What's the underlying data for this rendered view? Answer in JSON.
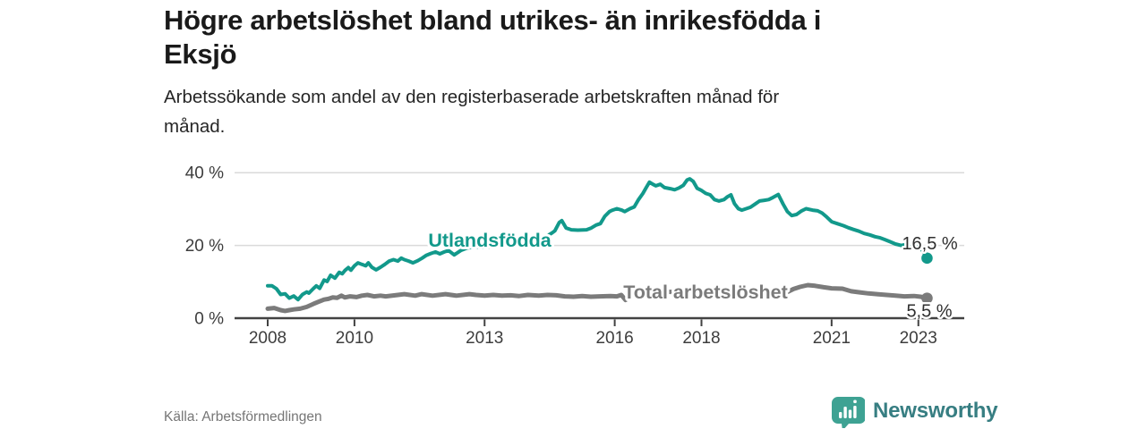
{
  "header": {
    "title_lines": [
      "Högre arbetslöshet bland utrikes- än inrikesfödda i",
      "Eksjö"
    ],
    "subtitle_lines": [
      "Arbetssökande som andel av den registerbaserade arbetskraften månad för",
      "månad."
    ]
  },
  "footer": {
    "source": "Källa: Arbetsförmedlingen",
    "brand_name": "Newsworthy"
  },
  "colors": {
    "title": "#1a1a1a",
    "subtitle": "#262626",
    "source": "#767676",
    "grid": "#dadada",
    "axis": "#424242",
    "tick_text": "#3d3d3d",
    "end_label_text": "#2f2f2f",
    "brand_icon": "#3EA293",
    "brand_text": "#377E82"
  },
  "chart_data": {
    "type": "line",
    "title": "Högre arbetslöshet bland utrikes- än inrikesfödda i Eksjö",
    "subtitle": "Arbetssökande som andel av den registerbaserade arbetskraften månad för månad.",
    "xlabel": "",
    "ylabel": "",
    "x_ticks": [
      2008,
      2010,
      2013,
      2016,
      2018,
      2021,
      2023
    ],
    "y_ticks": [
      0,
      20,
      40
    ],
    "y_tick_suffix": " %",
    "x_range": [
      2008,
      2023.45
    ],
    "y_range": [
      0,
      40
    ],
    "grid": "horizontal",
    "legend_position": "inline-labels",
    "series": [
      {
        "name": "Utlandsfödda",
        "color": "#12998B",
        "end_value_label": "16,5 %",
        "last_value": 16.5,
        "points": [
          [
            2008.0,
            8.9
          ],
          [
            2008.1,
            8.9
          ],
          [
            2008.2,
            8.1
          ],
          [
            2008.3,
            6.5
          ],
          [
            2008.4,
            6.7
          ],
          [
            2008.5,
            5.5
          ],
          [
            2008.6,
            6.1
          ],
          [
            2008.7,
            5.1
          ],
          [
            2008.8,
            6.5
          ],
          [
            2008.9,
            7.2
          ],
          [
            2008.95,
            6.9
          ],
          [
            2009.05,
            8.1
          ],
          [
            2009.12,
            8.9
          ],
          [
            2009.2,
            8.2
          ],
          [
            2009.3,
            10.5
          ],
          [
            2009.37,
            10.1
          ],
          [
            2009.45,
            11.8
          ],
          [
            2009.55,
            11.0
          ],
          [
            2009.65,
            12.6
          ],
          [
            2009.72,
            12.2
          ],
          [
            2009.78,
            13.1
          ],
          [
            2009.86,
            13.9
          ],
          [
            2009.92,
            13.2
          ],
          [
            2010.0,
            14.4
          ],
          [
            2010.08,
            15.2
          ],
          [
            2010.17,
            14.8
          ],
          [
            2010.26,
            14.4
          ],
          [
            2010.32,
            15.2
          ],
          [
            2010.4,
            14.0
          ],
          [
            2010.5,
            13.3
          ],
          [
            2010.6,
            14.0
          ],
          [
            2010.7,
            14.8
          ],
          [
            2010.8,
            15.7
          ],
          [
            2010.9,
            16.1
          ],
          [
            2011.0,
            15.7
          ],
          [
            2011.08,
            16.5
          ],
          [
            2011.15,
            16.1
          ],
          [
            2011.25,
            15.7
          ],
          [
            2011.35,
            15.2
          ],
          [
            2011.46,
            15.8
          ],
          [
            2011.56,
            16.5
          ],
          [
            2011.66,
            17.3
          ],
          [
            2011.76,
            17.8
          ],
          [
            2011.87,
            18.2
          ],
          [
            2011.97,
            17.7
          ],
          [
            2012.07,
            18.2
          ],
          [
            2012.17,
            18.6
          ],
          [
            2012.3,
            17.4
          ],
          [
            2012.45,
            18.6
          ],
          [
            2012.6,
            19.3
          ],
          [
            2012.8,
            19.6
          ],
          [
            2013.0,
            19.4
          ],
          [
            2013.2,
            19.8
          ],
          [
            2013.45,
            20.1
          ],
          [
            2013.7,
            20.0
          ],
          [
            2013.95,
            20.4
          ],
          [
            2014.2,
            21.2
          ],
          [
            2014.4,
            22.3
          ],
          [
            2014.55,
            23.4
          ],
          [
            2014.62,
            24.0
          ],
          [
            2014.72,
            26.3
          ],
          [
            2014.78,
            26.8
          ],
          [
            2014.88,
            24.8
          ],
          [
            2015.0,
            24.3
          ],
          [
            2015.15,
            24.2
          ],
          [
            2015.35,
            24.3
          ],
          [
            2015.46,
            24.8
          ],
          [
            2015.57,
            25.6
          ],
          [
            2015.67,
            26.0
          ],
          [
            2015.77,
            28.0
          ],
          [
            2015.88,
            29.3
          ],
          [
            2015.95,
            29.7
          ],
          [
            2016.05,
            30.1
          ],
          [
            2016.16,
            29.7
          ],
          [
            2016.23,
            29.3
          ],
          [
            2016.35,
            30.1
          ],
          [
            2016.45,
            30.6
          ],
          [
            2016.55,
            32.6
          ],
          [
            2016.65,
            34.3
          ],
          [
            2016.73,
            36.0
          ],
          [
            2016.8,
            37.4
          ],
          [
            2016.88,
            36.8
          ],
          [
            2016.95,
            36.4
          ],
          [
            2017.05,
            36.8
          ],
          [
            2017.15,
            35.9
          ],
          [
            2017.28,
            35.6
          ],
          [
            2017.38,
            35.3
          ],
          [
            2017.48,
            35.8
          ],
          [
            2017.58,
            36.5
          ],
          [
            2017.67,
            38.0
          ],
          [
            2017.73,
            38.3
          ],
          [
            2017.81,
            37.6
          ],
          [
            2017.9,
            35.7
          ],
          [
            2018.0,
            35.1
          ],
          [
            2018.1,
            34.3
          ],
          [
            2018.2,
            33.9
          ],
          [
            2018.3,
            32.6
          ],
          [
            2018.4,
            32.2
          ],
          [
            2018.52,
            32.6
          ],
          [
            2018.6,
            33.4
          ],
          [
            2018.68,
            33.9
          ],
          [
            2018.76,
            31.5
          ],
          [
            2018.85,
            30.1
          ],
          [
            2018.93,
            29.7
          ],
          [
            2019.03,
            30.1
          ],
          [
            2019.13,
            30.5
          ],
          [
            2019.24,
            31.4
          ],
          [
            2019.34,
            32.2
          ],
          [
            2019.45,
            32.4
          ],
          [
            2019.55,
            32.6
          ],
          [
            2019.65,
            33.2
          ],
          [
            2019.77,
            34.0
          ],
          [
            2019.88,
            31.4
          ],
          [
            2019.98,
            29.3
          ],
          [
            2020.08,
            28.2
          ],
          [
            2020.19,
            28.5
          ],
          [
            2020.31,
            29.5
          ],
          [
            2020.41,
            30.1
          ],
          [
            2020.56,
            29.7
          ],
          [
            2020.68,
            29.5
          ],
          [
            2020.78,
            28.9
          ],
          [
            2020.89,
            27.8
          ],
          [
            2021.0,
            26.5
          ],
          [
            2021.13,
            26.0
          ],
          [
            2021.28,
            25.4
          ],
          [
            2021.38,
            24.9
          ],
          [
            2021.5,
            24.4
          ],
          [
            2021.63,
            23.9
          ],
          [
            2021.75,
            23.3
          ],
          [
            2021.88,
            22.9
          ],
          [
            2022.0,
            22.4
          ],
          [
            2022.12,
            22.1
          ],
          [
            2022.23,
            21.6
          ],
          [
            2022.35,
            21.0
          ],
          [
            2022.47,
            20.4
          ],
          [
            2022.6,
            20.0
          ],
          [
            2022.7,
            20.2
          ],
          [
            2022.8,
            19.5
          ],
          [
            2022.9,
            19.9
          ],
          [
            2023.03,
            19.4
          ],
          [
            2023.1,
            18.5
          ],
          [
            2023.16,
            17.4
          ],
          [
            2023.2,
            16.5
          ]
        ]
      },
      {
        "name": "Total arbetslöshet",
        "color": "#7B7B7B",
        "end_value_label": "5,5 %",
        "last_value": 5.5,
        "points": [
          [
            2008.0,
            2.6
          ],
          [
            2008.15,
            2.8
          ],
          [
            2008.3,
            2.2
          ],
          [
            2008.4,
            2.0
          ],
          [
            2008.5,
            2.2
          ],
          [
            2008.6,
            2.4
          ],
          [
            2008.75,
            2.6
          ],
          [
            2008.9,
            3.1
          ],
          [
            2009.05,
            3.9
          ],
          [
            2009.15,
            4.4
          ],
          [
            2009.3,
            5.1
          ],
          [
            2009.4,
            5.3
          ],
          [
            2009.5,
            5.7
          ],
          [
            2009.6,
            5.6
          ],
          [
            2009.7,
            6.2
          ],
          [
            2009.78,
            5.7
          ],
          [
            2009.9,
            6.0
          ],
          [
            2010.05,
            5.8
          ],
          [
            2010.17,
            6.2
          ],
          [
            2010.3,
            6.4
          ],
          [
            2010.45,
            6.0
          ],
          [
            2010.6,
            6.2
          ],
          [
            2010.72,
            6.0
          ],
          [
            2011.0,
            6.4
          ],
          [
            2011.15,
            6.6
          ],
          [
            2011.4,
            6.2
          ],
          [
            2011.55,
            6.6
          ],
          [
            2011.8,
            6.2
          ],
          [
            2012.1,
            6.6
          ],
          [
            2012.35,
            6.2
          ],
          [
            2012.65,
            6.6
          ],
          [
            2012.8,
            6.4
          ],
          [
            2013.0,
            6.2
          ],
          [
            2013.2,
            6.4
          ],
          [
            2013.4,
            6.2
          ],
          [
            2013.6,
            6.3
          ],
          [
            2013.8,
            6.1
          ],
          [
            2014.0,
            6.4
          ],
          [
            2014.25,
            6.2
          ],
          [
            2014.45,
            6.4
          ],
          [
            2014.65,
            6.3
          ],
          [
            2014.85,
            6.0
          ],
          [
            2015.05,
            5.9
          ],
          [
            2015.25,
            6.1
          ],
          [
            2015.45,
            5.9
          ],
          [
            2015.65,
            6.0
          ],
          [
            2015.9,
            6.1
          ],
          [
            2016.05,
            6.0
          ],
          [
            2016.15,
            6.4
          ],
          [
            2016.25,
            5.0
          ],
          [
            2016.4,
            6.3
          ],
          [
            2016.55,
            6.6
          ],
          [
            2016.75,
            6.9
          ],
          [
            2016.95,
            7.1
          ],
          [
            2017.15,
            7.3
          ],
          [
            2017.35,
            7.2
          ],
          [
            2017.55,
            7.1
          ],
          [
            2017.8,
            7.0
          ],
          [
            2018.05,
            6.9
          ],
          [
            2018.3,
            6.7
          ],
          [
            2018.55,
            6.6
          ],
          [
            2018.8,
            6.5
          ],
          [
            2019.0,
            6.4
          ],
          [
            2019.2,
            6.3
          ],
          [
            2019.4,
            6.3
          ],
          [
            2019.6,
            6.4
          ],
          [
            2019.8,
            6.6
          ],
          [
            2020.0,
            7.3
          ],
          [
            2020.12,
            8.0
          ],
          [
            2020.27,
            8.6
          ],
          [
            2020.45,
            9.1
          ],
          [
            2020.62,
            8.9
          ],
          [
            2020.82,
            8.5
          ],
          [
            2021.0,
            8.2
          ],
          [
            2021.25,
            8.1
          ],
          [
            2021.45,
            7.4
          ],
          [
            2021.65,
            7.1
          ],
          [
            2021.85,
            6.8
          ],
          [
            2022.05,
            6.6
          ],
          [
            2022.27,
            6.4
          ],
          [
            2022.47,
            6.2
          ],
          [
            2022.68,
            6.0
          ],
          [
            2022.9,
            6.1
          ],
          [
            2023.05,
            5.9
          ],
          [
            2023.2,
            5.5
          ]
        ]
      }
    ]
  }
}
